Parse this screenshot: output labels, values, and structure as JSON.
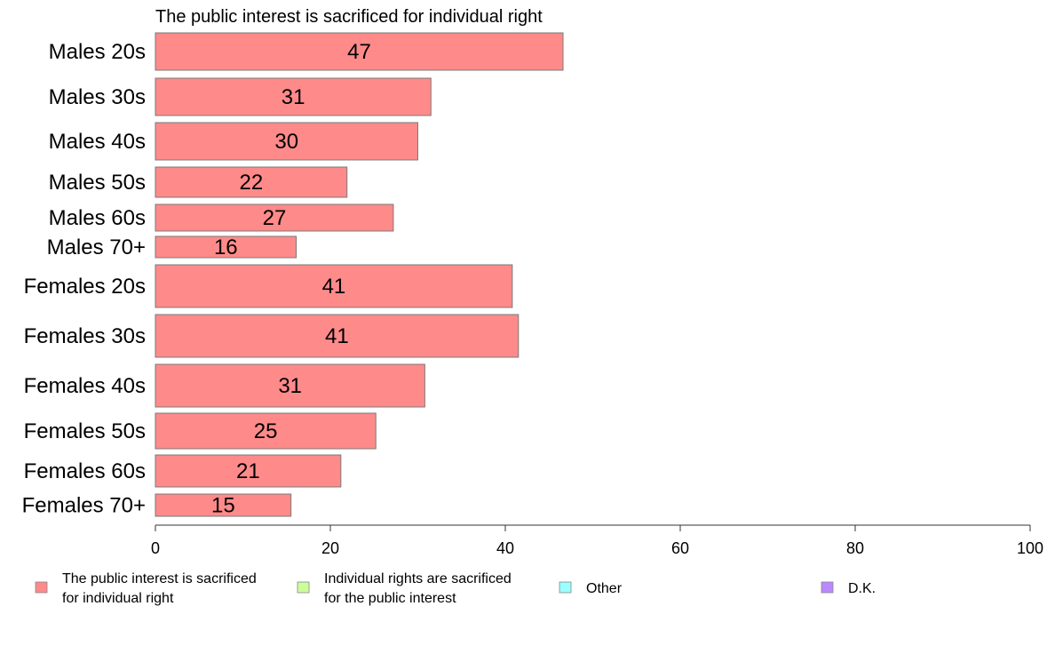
{
  "chart_data": {
    "type": "bar",
    "orientation": "horizontal",
    "title": "The public interest is sacrificed for individual right",
    "categories": [
      "Males 20s",
      "Males 30s",
      "Males 40s",
      "Males 50s",
      "Males 60s",
      "Males 70+",
      "Females 20s",
      "Females 30s",
      "Females 40s",
      "Females 50s",
      "Females 60s",
      "Females 70+"
    ],
    "series": [
      {
        "name": "The public interest is sacrificed for individual right",
        "values": [
          47,
          31,
          30,
          22,
          27,
          16,
          41,
          41,
          31,
          25,
          21,
          15
        ],
        "true_values": [
          46.6,
          31.5,
          30.0,
          21.9,
          27.2,
          16.1,
          40.8,
          41.5,
          30.8,
          25.2,
          21.2,
          15.5
        ],
        "color": "#ff8a8a"
      }
    ],
    "xlim": [
      0,
      100
    ],
    "xticks": [
      0,
      20,
      40,
      60,
      80,
      100
    ],
    "grid": false,
    "legend": {
      "placement": "bottom",
      "entries": [
        {
          "lines": [
            "The public interest is sacrificed",
            "for individual right"
          ],
          "color": "#ff8a8a"
        },
        {
          "lines": [
            "Individual rights are sacrificed",
            "for the public interest"
          ],
          "color": "#ccff99"
        },
        {
          "lines": [
            "Other"
          ],
          "color": "#99ffff"
        },
        {
          "lines": [
            "D.K."
          ],
          "color": "#bb88ff"
        }
      ]
    }
  }
}
